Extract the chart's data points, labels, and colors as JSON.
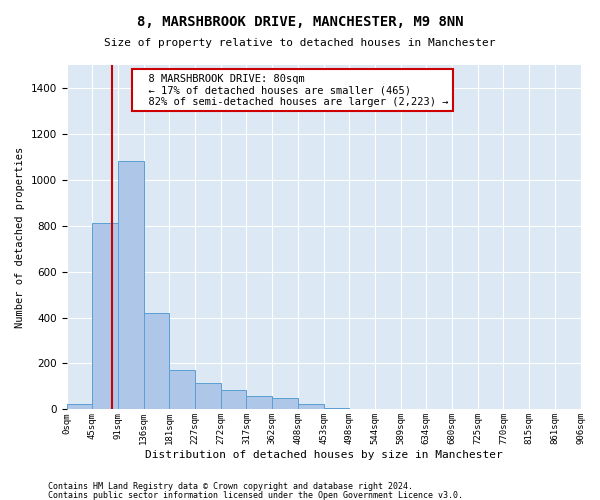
{
  "title": "8, MARSHBROOK DRIVE, MANCHESTER, M9 8NN",
  "subtitle": "Size of property relative to detached houses in Manchester",
  "xlabel": "Distribution of detached houses by size in Manchester",
  "ylabel": "Number of detached properties",
  "footnote1": "Contains HM Land Registry data © Crown copyright and database right 2024.",
  "footnote2": "Contains public sector information licensed under the Open Government Licence v3.0.",
  "annotation_line1": "8 MARSHBROOK DRIVE: 80sqm",
  "annotation_line2": "← 17% of detached houses are smaller (465)",
  "annotation_line3": "82% of semi-detached houses are larger (2,223) →",
  "bar_color": "#aec6e8",
  "bar_edge_color": "#5a9fd4",
  "vline_color": "#cc0000",
  "vline_x": 1.78,
  "ylim": [
    0,
    1500
  ],
  "yticks": [
    0,
    200,
    400,
    600,
    800,
    1000,
    1200,
    1400
  ],
  "bin_labels": [
    "0sqm",
    "45sqm",
    "91sqm",
    "136sqm",
    "181sqm",
    "227sqm",
    "272sqm",
    "317sqm",
    "362sqm",
    "408sqm",
    "453sqm",
    "498sqm",
    "544sqm",
    "589sqm",
    "634sqm",
    "680sqm",
    "725sqm",
    "770sqm",
    "815sqm",
    "861sqm",
    "906sqm"
  ],
  "bar_heights": [
    25,
    810,
    1080,
    420,
    170,
    115,
    85,
    60,
    50,
    25,
    5,
    0,
    0,
    0,
    0,
    0,
    0,
    0,
    0,
    0
  ],
  "background_color": "#ffffff",
  "grid_color": "#dce9f5"
}
